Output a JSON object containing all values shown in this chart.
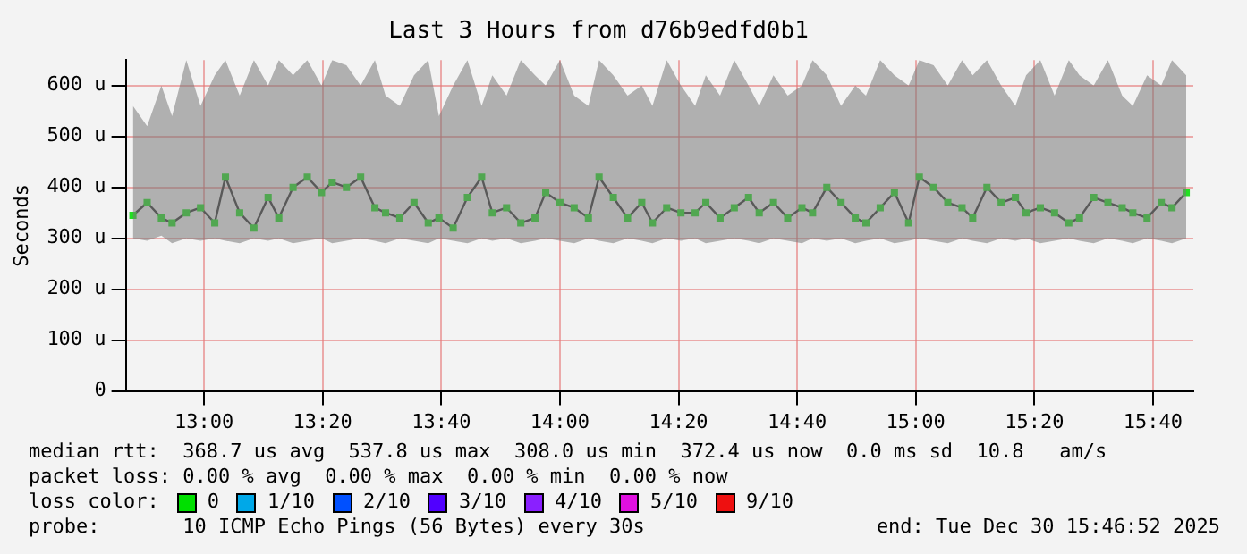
{
  "chart_data": {
    "type": "line",
    "title": "Last 3 Hours from d76b9edfd0b1",
    "ylabel": "Seconds",
    "x": [
      12.8,
      12.84,
      12.88,
      12.91,
      12.95,
      12.99,
      13.03,
      13.06,
      13.1,
      13.14,
      13.18,
      13.21,
      13.25,
      13.29,
      13.33,
      13.36,
      13.4,
      13.44,
      13.48,
      13.51,
      13.55,
      13.59,
      13.63,
      13.66,
      13.7,
      13.74,
      13.78,
      13.81,
      13.85,
      13.89,
      13.93,
      13.96,
      14,
      14.04,
      14.08,
      14.11,
      14.15,
      14.19,
      14.23,
      14.26,
      14.3,
      14.34,
      14.38,
      14.41,
      14.45,
      14.49,
      14.53,
      14.56,
      14.6,
      14.64,
      14.68,
      14.71,
      14.75,
      14.79,
      14.83,
      14.86,
      14.9,
      14.94,
      14.98,
      15.01,
      15.05,
      15.09,
      15.13,
      15.16,
      15.2,
      15.24,
      15.28,
      15.31,
      15.35,
      15.39,
      15.43,
      15.46,
      15.5,
      15.54,
      15.58,
      15.61,
      15.65,
      15.69,
      15.72,
      15.76
    ],
    "series": [
      {
        "color": "#22e022",
        "values": [
          345,
          370,
          340,
          330,
          350,
          360,
          330,
          420,
          350,
          320,
          380,
          340,
          400,
          420,
          390,
          410,
          400,
          420,
          360,
          350,
          340,
          370,
          330,
          340,
          320,
          380,
          420,
          350,
          360,
          330,
          340,
          390,
          370,
          360,
          340,
          420,
          380,
          340,
          370,
          330,
          360,
          350,
          350,
          370,
          340,
          360,
          380,
          350,
          370,
          340,
          360,
          350,
          400,
          370,
          340,
          330,
          360,
          390,
          330,
          420,
          400,
          370,
          360,
          340,
          400,
          370,
          380,
          350,
          360,
          350,
          330,
          340,
          380,
          370,
          360,
          350,
          340,
          370,
          360,
          390
        ],
        "lower": [
          300,
          295,
          305,
          290,
          300,
          295,
          300,
          295,
          290,
          300,
          295,
          300,
          290,
          295,
          300,
          290,
          295,
          300,
          295,
          290,
          300,
          295,
          290,
          300,
          295,
          290,
          300,
          295,
          300,
          290,
          295,
          300,
          295,
          290,
          300,
          295,
          290,
          300,
          295,
          290,
          300,
          295,
          300,
          290,
          295,
          300,
          295,
          290,
          300,
          295,
          290,
          300,
          295,
          300,
          290,
          295,
          300,
          290,
          295,
          300,
          295,
          290,
          300,
          295,
          290,
          300,
          295,
          300,
          290,
          295,
          300,
          295,
          290,
          300,
          295,
          290,
          300,
          295,
          290,
          300
        ],
        "upper": [
          560,
          520,
          600,
          540,
          650,
          560,
          620,
          650,
          580,
          650,
          600,
          650,
          620,
          650,
          600,
          650,
          640,
          600,
          650,
          580,
          560,
          620,
          650,
          540,
          600,
          650,
          560,
          620,
          580,
          650,
          620,
          600,
          650,
          580,
          560,
          650,
          620,
          580,
          600,
          560,
          650,
          600,
          560,
          620,
          580,
          650,
          600,
          560,
          620,
          580,
          600,
          650,
          620,
          560,
          600,
          580,
          650,
          620,
          600,
          650,
          640,
          600,
          650,
          620,
          650,
          600,
          560,
          620,
          650,
          580,
          650,
          620,
          600,
          650,
          580,
          560,
          620,
          600,
          650,
          620
        ]
      }
    ],
    "xlim": [
      12.78,
      15.78
    ],
    "xticks": [
      {
        "value": 13,
        "label": "13:00"
      },
      {
        "value": 13.3333,
        "label": "13:20"
      },
      {
        "value": 13.6667,
        "label": "13:40"
      },
      {
        "value": 14,
        "label": "14:00"
      },
      {
        "value": 14.3333,
        "label": "14:20"
      },
      {
        "value": 14.6667,
        "label": "14:40"
      },
      {
        "value": 15,
        "label": "15:00"
      },
      {
        "value": 15.3333,
        "label": "15:20"
      },
      {
        "value": 15.6667,
        "label": "15:40"
      }
    ],
    "ylim": [
      0,
      650
    ],
    "yticks": [
      0,
      {
        "value": 100,
        "label": "100 u"
      },
      {
        "value": 200,
        "label": "200 u"
      },
      {
        "value": 300,
        "label": "300 u"
      },
      {
        "value": 400,
        "label": "400 u"
      },
      {
        "value": 500,
        "label": "500 u"
      },
      {
        "value": 600,
        "label": "600 u"
      }
    ],
    "grid": true,
    "legend": false,
    "marker": "square",
    "line_style": "solid",
    "annotations": [
      "median rtt:  368.7 us avg  537.8 us max  308.0 us min  372.4 us now  0.0 ms sd  10.8   am/s",
      "packet loss: 0.00 % avg  0.00 % max  0.00 % min  0.00 % now",
      "loss color:",
      "0",
      "1/10",
      "2/10",
      "3/10",
      "4/10",
      "5/10",
      "9/10",
      "probe:       10 ICMP Echo Pings (56 Bytes) every 30s",
      "end: Tue Dec 30 15:46:52 2025"
    ]
  }
}
